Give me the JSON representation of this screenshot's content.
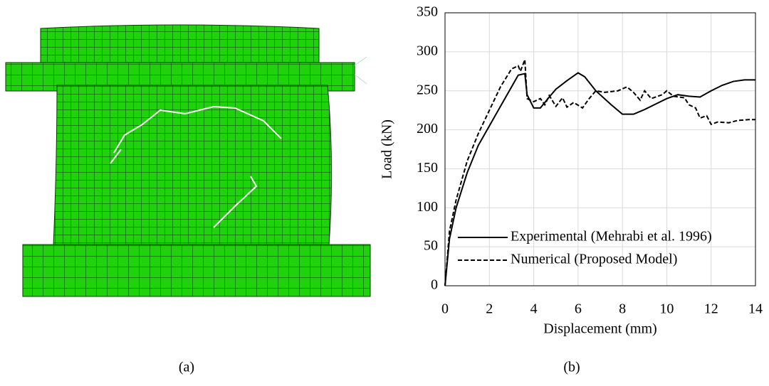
{
  "chart_data": {
    "type": "line",
    "x_label": "Displacement (mm)",
    "y_label": "Load (kN)",
    "xlim": [
      0,
      14
    ],
    "xticks": [
      0,
      2,
      4,
      6,
      8,
      10,
      12,
      14
    ],
    "ylim": [
      0,
      350
    ],
    "yticks": [
      0,
      50,
      100,
      150,
      200,
      250,
      300,
      350
    ],
    "grid": true,
    "legend_position": "lower right",
    "series": [
      {
        "name": "Experimental (Mehrabi et al. 1996)",
        "color": "#000000",
        "dash": "solid",
        "x": [
          0,
          0.2,
          0.5,
          1,
          1.5,
          2,
          2.5,
          3,
          3.3,
          3.6,
          3.7,
          4,
          4.3,
          4.7,
          5,
          5.5,
          6,
          6.3,
          6.8,
          7.5,
          8,
          8.5,
          9,
          9.5,
          10,
          10.5,
          11,
          11.5,
          12,
          12.5,
          13,
          13.5,
          14
        ],
        "values": [
          0,
          60,
          100,
          145,
          180,
          205,
          230,
          255,
          270,
          272,
          245,
          228,
          228,
          242,
          252,
          263,
          273,
          268,
          250,
          232,
          220,
          220,
          226,
          233,
          240,
          245,
          243,
          242,
          250,
          257,
          262,
          264,
          264
        ]
      },
      {
        "name": "Numerical (Proposed Model)",
        "color": "#000000",
        "dash": "dashed",
        "x": [
          0,
          0.2,
          0.5,
          1,
          1.5,
          2,
          2.5,
          3,
          3.3,
          3.4,
          3.6,
          3.7,
          4,
          4.3,
          4.5,
          4.7,
          5,
          5.3,
          5.5,
          5.8,
          6.2,
          6.5,
          6.8,
          7.2,
          7.8,
          8.2,
          8.5,
          8.8,
          9,
          9.3,
          9.8,
          10,
          10.3,
          10.8,
          11,
          11.3,
          11.5,
          11.8,
          12,
          12.3,
          12.8,
          13.2,
          13.7,
          14
        ],
        "values": [
          0,
          70,
          110,
          160,
          195,
          225,
          255,
          278,
          282,
          275,
          290,
          240,
          236,
          240,
          232,
          244,
          230,
          241,
          229,
          235,
          228,
          240,
          250,
          248,
          250,
          255,
          248,
          238,
          250,
          240,
          245,
          250,
          243,
          241,
          232,
          228,
          215,
          218,
          207,
          210,
          209,
          212,
          213,
          213
        ]
      }
    ]
  },
  "panels": {
    "a": "(a)",
    "b": "(b)"
  }
}
